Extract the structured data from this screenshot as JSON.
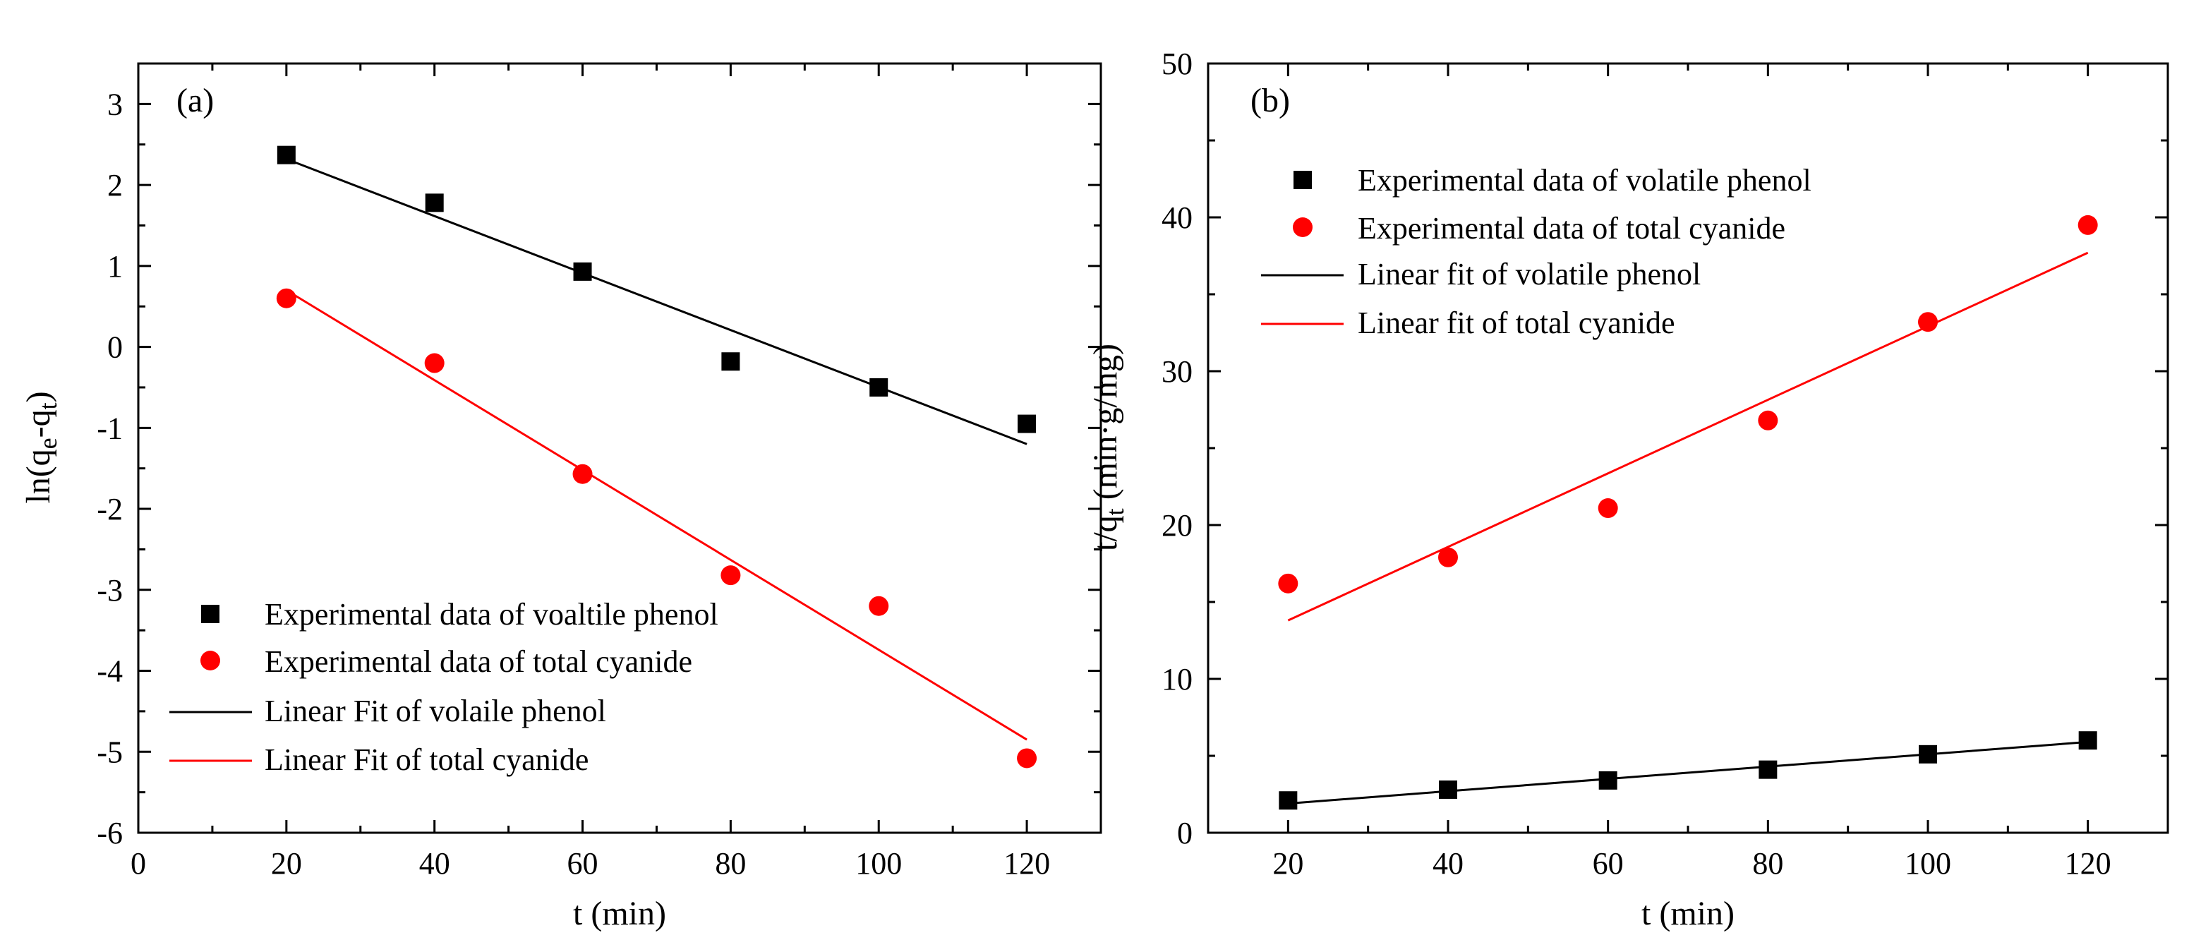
{
  "figure": {
    "colors": {
      "black": "#000000",
      "red": "#ff0000",
      "background": "#ffffff"
    }
  },
  "chart_data": [
    {
      "type": "scatter",
      "panel_label": "(a)",
      "xlabel": "t (min)",
      "ylabel": {
        "base": "ln(q",
        "sub1": "e",
        "mid": "-q",
        "sub2": "t",
        "end": ")"
      },
      "xlim": [
        0,
        130
      ],
      "ylim": [
        -6,
        3.5
      ],
      "xticks": [
        0,
        20,
        40,
        60,
        80,
        100,
        120
      ],
      "yticks": [
        -6,
        -5,
        -4,
        -3,
        -2,
        -1,
        0,
        1,
        2,
        3
      ],
      "x": [
        20,
        40,
        60,
        80,
        100,
        120
      ],
      "series": [
        {
          "name": "Experimental data of voaltile phenol",
          "kind": "points",
          "marker": "square",
          "color": "#000000",
          "values": [
            2.37,
            1.78,
            0.93,
            -0.18,
            -0.5,
            -0.95
          ]
        },
        {
          "name": "Experimental data of total cyanide",
          "kind": "points",
          "marker": "circle",
          "color": "#ff0000",
          "values": [
            0.6,
            -0.2,
            -1.57,
            -2.82,
            -3.2,
            -5.08
          ]
        },
        {
          "name": "Linear Fit of volaile phenol",
          "kind": "line",
          "color": "#000000",
          "x": [
            20,
            120
          ],
          "values": [
            2.32,
            -1.2
          ]
        },
        {
          "name": "Linear Fit of total cyanide",
          "kind": "line",
          "color": "#ff0000",
          "x": [
            20,
            120
          ],
          "values": [
            0.7,
            -4.85
          ]
        }
      ],
      "legend_position": "lower-left"
    },
    {
      "type": "scatter",
      "panel_label": "(b)",
      "xlabel": "t (min)",
      "ylabel": {
        "base": "t/q",
        "sub": "t",
        "end": " (min·g/mg)"
      },
      "xlim": [
        10,
        130
      ],
      "ylim": [
        0,
        50
      ],
      "xticks": [
        20,
        40,
        60,
        80,
        100,
        120
      ],
      "yticks": [
        0,
        10,
        20,
        30,
        40,
        50
      ],
      "x": [
        20,
        40,
        60,
        80,
        100,
        120
      ],
      "series": [
        {
          "name": "Experimental data of volatile phenol",
          "kind": "points",
          "marker": "square",
          "color": "#000000",
          "values": [
            2.1,
            2.8,
            3.4,
            4.1,
            5.1,
            6.0
          ]
        },
        {
          "name": "Experimental data of total cyanide",
          "kind": "points",
          "marker": "circle",
          "color": "#ff0000",
          "values": [
            16.2,
            17.9,
            21.1,
            26.8,
            33.2,
            39.5
          ]
        },
        {
          "name": "Linear fit of volatile phenol",
          "kind": "line",
          "color": "#000000",
          "x": [
            20,
            120
          ],
          "values": [
            1.9,
            5.9
          ]
        },
        {
          "name": "Linear fit of total cyanide",
          "kind": "line",
          "color": "#ff0000",
          "x": [
            20,
            120
          ],
          "values": [
            13.8,
            37.7
          ]
        }
      ],
      "legend_position": "upper-left"
    }
  ]
}
